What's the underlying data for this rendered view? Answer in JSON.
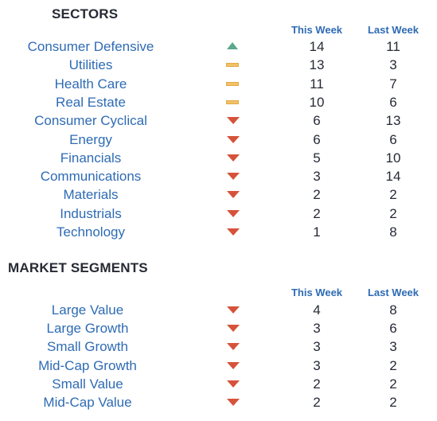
{
  "sectors": {
    "title": "SECTORS",
    "col_this_week": "This Week",
    "col_last_week": "Last Week",
    "rows": [
      {
        "name": "Consumer Defensive",
        "trend": "up",
        "this_week": "14",
        "last_week": "11"
      },
      {
        "name": "Utilities",
        "trend": "flat",
        "this_week": "13",
        "last_week": "3"
      },
      {
        "name": "Health Care",
        "trend": "flat",
        "this_week": "11",
        "last_week": "7"
      },
      {
        "name": "Real Estate",
        "trend": "flat",
        "this_week": "10",
        "last_week": "6"
      },
      {
        "name": "Consumer Cyclical",
        "trend": "down",
        "this_week": "6",
        "last_week": "13"
      },
      {
        "name": "Energy",
        "trend": "down",
        "this_week": "6",
        "last_week": "6"
      },
      {
        "name": "Financials",
        "trend": "down",
        "this_week": "5",
        "last_week": "10"
      },
      {
        "name": "Communications",
        "trend": "down",
        "this_week": "3",
        "last_week": "14"
      },
      {
        "name": "Materials",
        "trend": "down",
        "this_week": "2",
        "last_week": "2"
      },
      {
        "name": "Industrials",
        "trend": "down",
        "this_week": "2",
        "last_week": "2"
      },
      {
        "name": "Technology",
        "trend": "down",
        "this_week": "1",
        "last_week": "8"
      }
    ]
  },
  "segments": {
    "title": "MARKET SEGMENTS",
    "col_this_week": "This Week",
    "col_last_week": "Last Week",
    "rows": [
      {
        "name": "Large Value",
        "trend": "down",
        "this_week": "4",
        "last_week": "8"
      },
      {
        "name": "Large Growth",
        "trend": "down",
        "this_week": "3",
        "last_week": "6"
      },
      {
        "name": "Small Growth",
        "trend": "down",
        "this_week": "3",
        "last_week": "3"
      },
      {
        "name": "Mid-Cap Growth",
        "trend": "down",
        "this_week": "3",
        "last_week": "2"
      },
      {
        "name": "Small Value",
        "trend": "down",
        "this_week": "2",
        "last_week": "2"
      },
      {
        "name": "Mid-Cap Value",
        "trend": "down",
        "this_week": "2",
        "last_week": "2"
      }
    ]
  },
  "trend_icons": {
    "up": "triangle-up-icon",
    "flat": "dash-icon",
    "down": "triangle-down-icon"
  },
  "colors": {
    "label": "#2e6bb4",
    "value": "#262a35",
    "up": "#5ba88a",
    "flat": "#f1c268",
    "down": "#d6533b"
  }
}
